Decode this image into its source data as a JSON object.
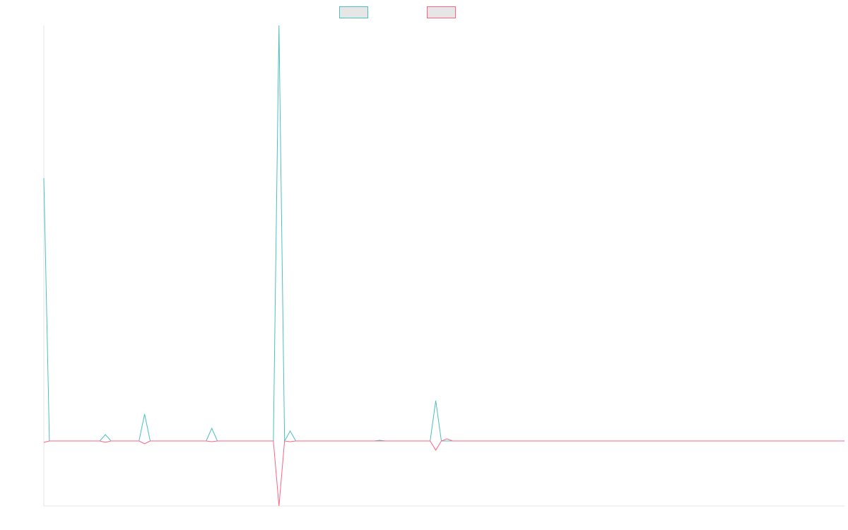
{
  "chart_data": {
    "type": "line",
    "categories": [
      null,
      null,
      null,
      null,
      null,
      null,
      null,
      null,
      null,
      null,
      null,
      null,
      null,
      null,
      null,
      null,
      null,
      null,
      null,
      null,
      null,
      null,
      null,
      null,
      null,
      null,
      null,
      null,
      null,
      null,
      null,
      null,
      null,
      null,
      null,
      null,
      null,
      null,
      null,
      null,
      null,
      null,
      null,
      null,
      null,
      null,
      null,
      null,
      null,
      null,
      null,
      null,
      null,
      null,
      null,
      null,
      null,
      null,
      null,
      null,
      null,
      null,
      null,
      null,
      null,
      null,
      null,
      null,
      null,
      null,
      null,
      null,
      null,
      null,
      null,
      null,
      null,
      null,
      null,
      null,
      null,
      null,
      null,
      null,
      null,
      null,
      null,
      null,
      null,
      null,
      null,
      null,
      null,
      null,
      null,
      null,
      null,
      null,
      null,
      null,
      null,
      null,
      null,
      null,
      null,
      null,
      null,
      null,
      null,
      null,
      null,
      null,
      null,
      null,
      null,
      null,
      null,
      null,
      null,
      null,
      null,
      null,
      null,
      null,
      null,
      null,
      null,
      null,
      null,
      null,
      null,
      null,
      null,
      null,
      null,
      null,
      null,
      null,
      null,
      null,
      null,
      null,
      null,
      null
    ],
    "series": [
      {
        "color": "#4bc0c0",
        "values": [
          372,
          0,
          0,
          0,
          0,
          0,
          0,
          0,
          0,
          0,
          0,
          9,
          0,
          0,
          0,
          0,
          0,
          0,
          38,
          0,
          0,
          0,
          0,
          0,
          0,
          0,
          0,
          0,
          0,
          0,
          18,
          0,
          0,
          0,
          0,
          0,
          0,
          0,
          0,
          0,
          0,
          0,
          588,
          0,
          14,
          0,
          0,
          0,
          0,
          0,
          0,
          0,
          0,
          0,
          0,
          0,
          0,
          0,
          0,
          0,
          1,
          0,
          0,
          0,
          0,
          0,
          0,
          0,
          0,
          0,
          57,
          0,
          0,
          0,
          0,
          0,
          0,
          0,
          0,
          0,
          0,
          0,
          0,
          0,
          0,
          0,
          0,
          0,
          0,
          0,
          0,
          0,
          0,
          0,
          0,
          0,
          0,
          0,
          0,
          0,
          0,
          0,
          0,
          0,
          0,
          0,
          0,
          0,
          0,
          0,
          0,
          0,
          0,
          0,
          0,
          0,
          0,
          0,
          0,
          0,
          0,
          0,
          0,
          0,
          0,
          0,
          0,
          0,
          0,
          0,
          0,
          0,
          0,
          0,
          0,
          0,
          0,
          0,
          0,
          0,
          0,
          0,
          0,
          0
        ]
      },
      {
        "color": "#ff6384",
        "values": [
          -2,
          0,
          0,
          0,
          0,
          0,
          0,
          0,
          0,
          0,
          0,
          -2,
          0,
          0,
          0,
          0,
          0,
          0,
          -4,
          0,
          0,
          0,
          0,
          0,
          0,
          0,
          0,
          0,
          0,
          0,
          -1,
          0,
          0,
          0,
          0,
          0,
          0,
          0,
          0,
          0,
          0,
          0,
          -92,
          0,
          -1,
          0,
          0,
          0,
          0,
          0,
          0,
          0,
          0,
          0,
          0,
          0,
          0,
          0,
          0,
          0,
          0,
          0,
          0,
          0,
          0,
          0,
          0,
          0,
          0,
          0,
          -13,
          0,
          3,
          0,
          0,
          0,
          0,
          0,
          0,
          0,
          0,
          0,
          0,
          0,
          0,
          0,
          0,
          0,
          0,
          0,
          0,
          0,
          0,
          0,
          0,
          0,
          0,
          0,
          0,
          0,
          0,
          0,
          0,
          0,
          0,
          0,
          0,
          0,
          0,
          0,
          0,
          0,
          0,
          0,
          0,
          0,
          0,
          0,
          0,
          0,
          0,
          0,
          0,
          0,
          0,
          0,
          0,
          0,
          0,
          0,
          0,
          0,
          0,
          0,
          0,
          0,
          0,
          0,
          0,
          0,
          0,
          0,
          0,
          0
        ]
      }
    ],
    "ylim": [
      -92,
      588
    ],
    "legend": "top"
  }
}
